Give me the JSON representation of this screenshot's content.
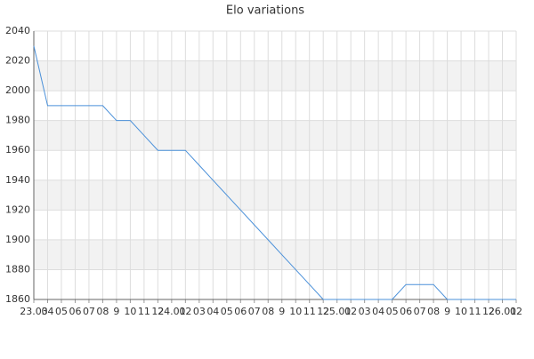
{
  "chart_data": {
    "type": "line",
    "title": "Elo variations",
    "categories": [
      "23.03",
      "04",
      "05",
      "06",
      "07",
      "08",
      "9",
      "10",
      "11",
      "12",
      "24.01",
      "02",
      "03",
      "04",
      "05",
      "06",
      "07",
      "08",
      "9",
      "10",
      "11",
      "12",
      "25.01",
      "02",
      "03",
      "04",
      "05",
      "06",
      "07",
      "08",
      "9",
      "10",
      "11",
      "12",
      "26.01",
      "02"
    ],
    "values": [
      2030,
      1990,
      1990,
      1990,
      1990,
      1990,
      1980,
      1980,
      1970,
      1960,
      1960,
      1960,
      1950,
      1940,
      1930,
      1920,
      1910,
      1900,
      1890,
      1880,
      1870,
      1860,
      1860,
      1860,
      1860,
      1860,
      1860,
      1870,
      1870,
      1870,
      1860,
      1860,
      1860,
      1860,
      1860,
      1860
    ],
    "color": "#4a90d9",
    "ylim": [
      1860,
      2040
    ],
    "yticks": [
      1860,
      1880,
      1900,
      1920,
      1940,
      1960,
      1980,
      2000,
      2020,
      2040
    ],
    "grid": true,
    "bands": true
  }
}
